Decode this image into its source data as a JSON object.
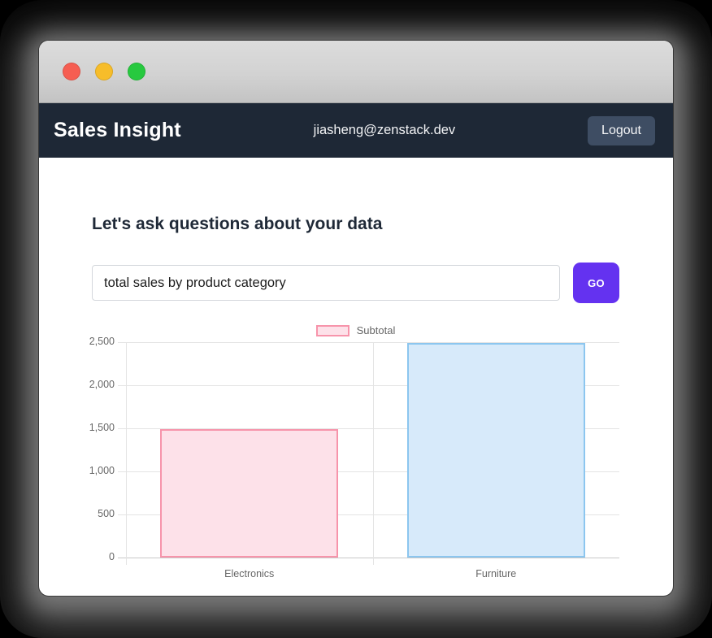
{
  "window": {
    "titlebar": {
      "buttons": [
        "close",
        "minimize",
        "zoom"
      ]
    },
    "navbar": {
      "brand": "Sales Insight",
      "user_email": "jiasheng@zenstack.dev",
      "logout_label": "Logout"
    }
  },
  "main": {
    "heading": "Let's ask questions about your data",
    "query_input": {
      "value": "total sales by product category"
    },
    "go_button_label": "GO"
  },
  "colors": {
    "navbar_bg": "#1e2836",
    "logout_bg": "#3e4d63",
    "accent_purple": "#6432f0",
    "titlebar_top": "#dcdcdc",
    "titlebar_bottom": "#c3c3c3",
    "traffic_red": "#f65e52",
    "traffic_yellow": "#f7bd2a",
    "traffic_green": "#27c93f"
  },
  "chart_data": {
    "type": "bar",
    "title": "",
    "categories": [
      "Electronics",
      "Furniture"
    ],
    "series": [
      {
        "name": "Subtotal",
        "values": [
          1490,
          2490
        ]
      }
    ],
    "ylim": [
      0,
      2500
    ],
    "ytick_step": 500,
    "ytick_labels": [
      "0",
      "500",
      "1,000",
      "1,500",
      "2,000",
      "2,500"
    ],
    "legend_position": "top",
    "grid": true,
    "bar_fills": [
      "#fde1e9",
      "#d7eafa"
    ],
    "bar_borders": [
      "#f794ab",
      "#8cc6ef"
    ],
    "grid_color": "#e4e4e4",
    "axis_color": "#c8c8c8",
    "tick_text_color": "#666666"
  }
}
